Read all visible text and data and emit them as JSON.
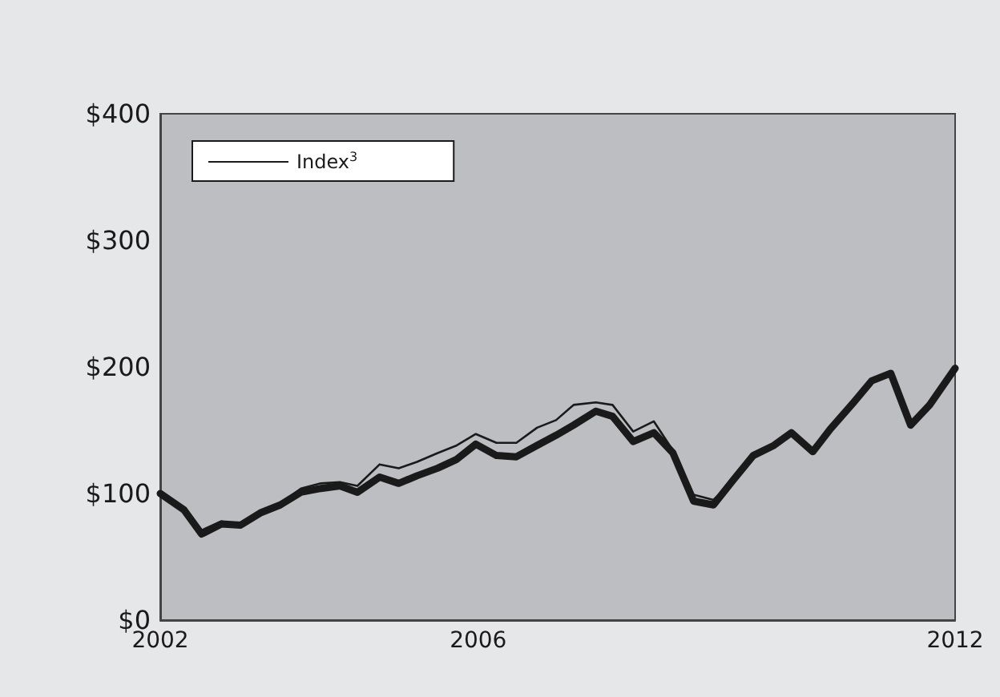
{
  "chart_data": {
    "type": "line",
    "xlim": [
      2002,
      2012
    ],
    "xticks": [
      2002,
      2006,
      2012
    ],
    "ylim": [
      0,
      400
    ],
    "yticks": [
      {
        "value": 0,
        "label": "$0"
      },
      {
        "value": 100,
        "label": "$100"
      },
      {
        "value": 200,
        "label": "$200"
      },
      {
        "value": 300,
        "label": "$300"
      },
      {
        "value": 400,
        "label": "$400"
      }
    ],
    "grid": false,
    "legend": "top left",
    "marker": "none",
    "line_style": "solid",
    "series": [
      {
        "color": "#1a1a1a",
        "x": [
          2002,
          2002.3,
          2002.52,
          2002.77,
          2003.01,
          2003.27,
          2003.51,
          2003.77,
          2004.02,
          2004.26,
          2004.48,
          2004.76,
          2005,
          2005.23,
          2005.49,
          2005.73,
          2005.97,
          2006.23,
          2006.48,
          2006.74,
          2006.98,
          2007.2,
          2007.48,
          2007.69,
          2007.95,
          2008.21,
          2008.45,
          2008.71,
          2008.96,
          2009.2,
          2009.46,
          2009.72,
          2009.94,
          2010.21,
          2010.43,
          2010.71,
          2010.95,
          2011.19,
          2011.44,
          2011.68,
          2012
        ],
        "values": [
          100,
          87,
          68,
          76,
          75,
          85,
          91,
          101,
          104,
          106,
          101,
          113,
          108,
          114,
          120,
          127,
          139,
          130,
          129,
          138,
          146,
          154,
          165,
          161,
          141,
          148,
          132,
          94,
          91,
          110,
          130,
          138,
          148,
          133,
          151,
          171,
          189,
          195,
          154,
          170,
          199
        ]
      },
      {
        "name": "Index$^{3}$",
        "color": "#1a1a1a",
        "x": [
          2002,
          2002.3,
          2002.52,
          2002.77,
          2003.01,
          2003.27,
          2003.51,
          2003.77,
          2004.02,
          2004.26,
          2004.48,
          2004.76,
          2005,
          2005.23,
          2005.49,
          2005.73,
          2005.97,
          2006.23,
          2006.48,
          2006.74,
          2006.98,
          2007.2,
          2007.48,
          2007.69,
          2007.95,
          2008.21,
          2008.45,
          2008.71,
          2008.96,
          2009.2,
          2009.46,
          2009.72,
          2009.94,
          2010.21,
          2010.43,
          2010.71,
          2010.95,
          2011.19,
          2011.44,
          2011.68,
          2012
        ],
        "values": [
          100,
          86,
          71,
          78,
          75,
          85,
          92,
          104,
          108,
          109,
          106,
          123,
          120,
          125,
          132,
          138,
          147,
          140,
          140,
          152,
          158,
          170,
          172,
          170,
          149,
          157,
          134,
          99,
          95,
          110,
          130,
          138,
          148,
          133,
          151,
          171,
          189,
          195,
          154,
          170,
          199
        ]
      }
    ]
  }
}
